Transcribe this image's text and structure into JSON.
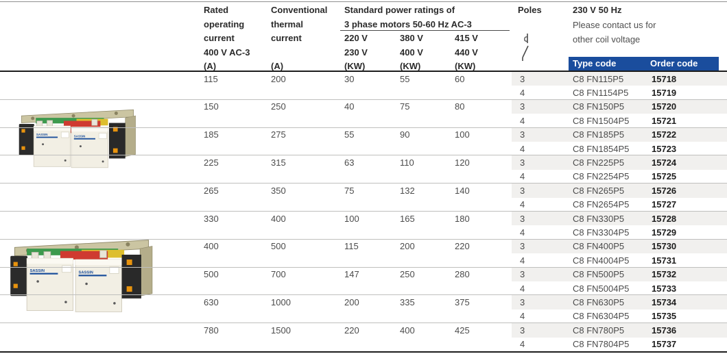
{
  "colors": {
    "accent_blue": "#1a4d9d",
    "row_shade": "#f1f0ee",
    "rule_dark": "#1c1c1c",
    "rule_light": "#bfbfbd"
  },
  "products": {
    "brand": "SASSIN",
    "photos": [
      {
        "label": "changeover-contactor-assembly-small"
      },
      {
        "label": "changeover-contactor-assembly-large"
      }
    ]
  },
  "table": {
    "header": {
      "rated": [
        "Rated",
        "operating",
        "current",
        "400 V AC-3",
        "(A)"
      ],
      "thermal": [
        "Conventional",
        "thermal",
        "current"
      ],
      "thermal_unit": "(A)",
      "power_title": [
        "Standard power ratings of",
        "3 phase motors 50-60 Hz AC-3"
      ],
      "v220": [
        "220 V",
        "230 V",
        "(KW)"
      ],
      "v380": [
        "380 V",
        "400 V",
        "(KW)"
      ],
      "v415": [
        "415 V",
        "440 V",
        "(KW)"
      ],
      "poles": "Poles",
      "coil_title": "230 V 50 Hz",
      "coil_note": [
        "Please contact us for",
        "other coil voltage"
      ],
      "type_code": "Type code",
      "order_code": "Order code"
    },
    "rows": [
      {
        "rated": "115",
        "thermal": "200",
        "kw220": "30",
        "kw380": "55",
        "kw415": "60",
        "variants": [
          {
            "poles": "3",
            "type": "C8 FN115P5",
            "order": "15718"
          },
          {
            "poles": "4",
            "type": "C8 FN1154P5",
            "order": "15719"
          }
        ]
      },
      {
        "rated": "150",
        "thermal": "250",
        "kw220": "40",
        "kw380": "75",
        "kw415": "80",
        "variants": [
          {
            "poles": "3",
            "type": "C8 FN150P5",
            "order": "15720"
          },
          {
            "poles": "4",
            "type": "C8 FN1504P5",
            "order": "15721"
          }
        ]
      },
      {
        "rated": "185",
        "thermal": "275",
        "kw220": "55",
        "kw380": "90",
        "kw415": "100",
        "variants": [
          {
            "poles": "3",
            "type": "C8 FN185P5",
            "order": "15722"
          },
          {
            "poles": "4",
            "type": "C8 FN1854P5",
            "order": "15723"
          }
        ]
      },
      {
        "rated": "225",
        "thermal": "315",
        "kw220": "63",
        "kw380": "110",
        "kw415": "120",
        "variants": [
          {
            "poles": "3",
            "type": "C8 FN225P5",
            "order": "15724"
          },
          {
            "poles": "4",
            "type": "C8 FN2254P5",
            "order": "15725"
          }
        ]
      },
      {
        "rated": "265",
        "thermal": "350",
        "kw220": "75",
        "kw380": "132",
        "kw415": "140",
        "variants": [
          {
            "poles": "3",
            "type": "C8 FN265P5",
            "order": "15726"
          },
          {
            "poles": "4",
            "type": "C8 FN2654P5",
            "order": "15727"
          }
        ]
      },
      {
        "rated": "330",
        "thermal": "400",
        "kw220": "100",
        "kw380": "165",
        "kw415": "180",
        "variants": [
          {
            "poles": "3",
            "type": "C8 FN330P5",
            "order": "15728"
          },
          {
            "poles": "4",
            "type": "C8 FN3304P5",
            "order": "15729"
          }
        ]
      },
      {
        "rated": "400",
        "thermal": "500",
        "kw220": "115",
        "kw380": "200",
        "kw415": "220",
        "variants": [
          {
            "poles": "3",
            "type": "C8 FN400P5",
            "order": "15730"
          },
          {
            "poles": "4",
            "type": "C8 FN4004P5",
            "order": "15731"
          }
        ]
      },
      {
        "rated": "500",
        "thermal": "700",
        "kw220": "147",
        "kw380": "250",
        "kw415": "280",
        "variants": [
          {
            "poles": "3",
            "type": "C8 FN500P5",
            "order": "15732"
          },
          {
            "poles": "4",
            "type": "C8 FN5004P5",
            "order": "15733"
          }
        ]
      },
      {
        "rated": "630",
        "thermal": "1000",
        "kw220": "200",
        "kw380": "335",
        "kw415": "375",
        "variants": [
          {
            "poles": "3",
            "type": "C8 FN630P5",
            "order": "15734"
          },
          {
            "poles": "4",
            "type": "C8 FN6304P5",
            "order": "15735"
          }
        ]
      },
      {
        "rated": "780",
        "thermal": "1500",
        "kw220": "220",
        "kw380": "400",
        "kw415": "425",
        "variants": [
          {
            "poles": "3",
            "type": "C8 FN780P5",
            "order": "15736"
          },
          {
            "poles": "4",
            "type": "C8 FN7804P5",
            "order": "15737"
          }
        ]
      }
    ]
  }
}
